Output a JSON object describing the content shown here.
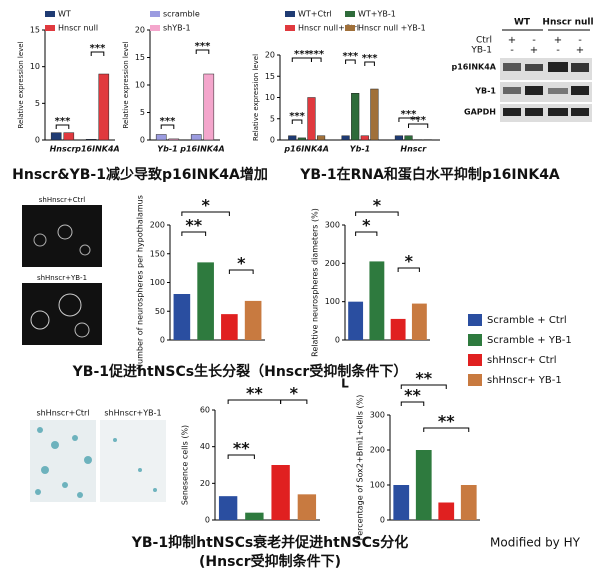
{
  "chart_data": [
    {
      "type": "bar",
      "y_label": "Relative expression level",
      "categories": [
        "Hnscr",
        "p16INK4A"
      ],
      "series": [
        {
          "name": "WT",
          "color": "#1f3b73",
          "values": [
            1,
            0.1
          ]
        },
        {
          "name": "Hnscr null",
          "color": "#e0393e",
          "values": [
            1,
            9
          ]
        }
      ],
      "ylim": [
        0,
        15
      ],
      "yticks": [
        0,
        5,
        10,
        15
      ],
      "annotations": [
        "***",
        "***"
      ]
    },
    {
      "type": "bar",
      "y_label": "Relative expression level",
      "categories": [
        "Yb-1",
        "p16INK4A"
      ],
      "series": [
        {
          "name": "scramble",
          "color": "#9b9be0",
          "values": [
            1,
            1
          ]
        },
        {
          "name": "shYB-1",
          "color": "#f4a6cc",
          "values": [
            0.2,
            12
          ]
        }
      ],
      "ylim": [
        0,
        20
      ],
      "yticks": [
        0,
        5,
        10,
        15,
        20
      ],
      "annotations": [
        "***",
        "***"
      ]
    },
    {
      "type": "bar",
      "y_label": "Relative expression level",
      "categories": [
        "p16INK4A",
        "Yb-1",
        "Hnscr"
      ],
      "series": [
        {
          "name": "WT+Ctrl",
          "color": "#1f3b73",
          "values": [
            1,
            1,
            1
          ]
        },
        {
          "name": "WT+YB-1",
          "color": "#2e6b3a",
          "values": [
            0.5,
            11,
            1
          ]
        },
        {
          "name": "Hnscr null+Ctrl",
          "color": "#e0393e",
          "values": [
            10,
            1,
            0.1
          ]
        },
        {
          "name": "Hnscr null +YB-1",
          "color": "#a0703a",
          "values": [
            1,
            12,
            0.1
          ]
        }
      ],
      "ylim": [
        0,
        20
      ],
      "yticks": [
        0,
        5,
        10,
        15,
        20
      ],
      "annotations": [
        "***",
        "***",
        "***",
        "***",
        "***",
        "***",
        "***"
      ]
    },
    {
      "type": "bar",
      "y_label": "Number of neurospheres per hypothalamus",
      "categories": [
        null,
        null,
        null,
        null
      ],
      "values": [
        80,
        135,
        45,
        68
      ],
      "ylim": [
        0,
        200
      ],
      "yticks": [
        0,
        50,
        100,
        150,
        200
      ],
      "annotations": [
        "*",
        "**",
        "*"
      ]
    },
    {
      "type": "bar",
      "y_label": "Relative neurospheres diameters (%)",
      "categories": [
        null,
        null,
        null,
        null
      ],
      "values": [
        100,
        205,
        55,
        95
      ],
      "ylim": [
        0,
        300
      ],
      "yticks": [
        0,
        100,
        200,
        300
      ],
      "annotations": [
        "*",
        "*",
        "*"
      ]
    },
    {
      "type": "bar",
      "y_label": "Senesence cells (%)",
      "categories": [
        null,
        null,
        null,
        null
      ],
      "values": [
        13,
        4,
        30,
        14
      ],
      "ylim": [
        0,
        60
      ],
      "yticks": [
        0,
        20,
        40,
        60
      ],
      "annotations": [
        "**",
        "**",
        "*"
      ]
    },
    {
      "type": "bar",
      "y_label": "Percentage of Sox2+Bmi1+cells (%)",
      "categories": [
        null,
        null,
        null,
        null
      ],
      "values": [
        100,
        200,
        50,
        100
      ],
      "ylim": [
        0,
        300
      ],
      "yticks": [
        0,
        100,
        200,
        300
      ],
      "annotations": [
        "**",
        "**",
        "**"
      ]
    }
  ],
  "legend": [
    {
      "name": "Scramble + Ctrl",
      "color": "#2a4ea0"
    },
    {
      "name": "Scramble + YB-1",
      "color": "#2e7a3e"
    },
    {
      "name": "shHnscr+ Ctrl",
      "color": "#e02020"
    },
    {
      "name": "shHnscr+ YB-1",
      "color": "#c87a40"
    }
  ],
  "blot": {
    "groups": [
      "WT",
      "Hnscr null"
    ],
    "rows": [
      "Ctrl",
      "YB-1"
    ],
    "signs": [
      "+",
      "-",
      "+",
      "-",
      "-",
      "+",
      "-",
      "+"
    ],
    "bands": [
      "p16INK4A",
      "YB-1",
      "GAPDH"
    ]
  },
  "images": {
    "sphere_labels": [
      "shHnscr+Ctrl",
      "shHnscr+YB-1"
    ],
    "senescence_labels": [
      "shHnscr+Ctrl",
      "shHnscr+YB-1"
    ]
  },
  "captions": [
    "Hnscr&YB-1减少导致p16INK4A增加",
    "YB-1在RNA和蛋白水平抑制p16INK4A",
    "YB-1促进htNSCs生长分裂（Hnscr受抑制条件下）",
    "L",
    "YB-1抑制htNSCs衰老并促进htNSCs分化",
    "(Hnscr受抑制条件下)"
  ],
  "watermark": "Modified by HY"
}
